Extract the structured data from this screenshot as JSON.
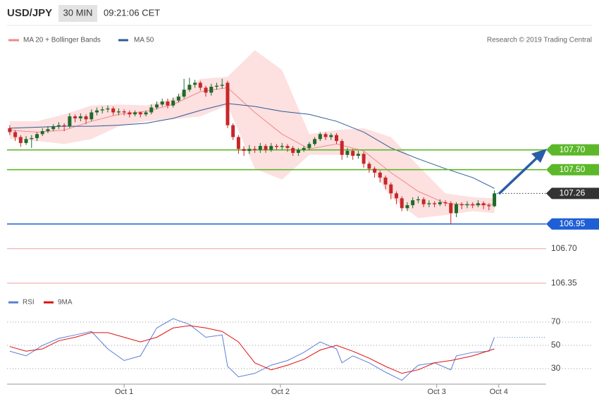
{
  "header": {
    "symbol": "USD/JPY",
    "interval": "30 MIN",
    "time": "09:21:06 CET"
  },
  "credit": "Research © 2019 Trading Central",
  "chart_data": [
    {
      "type": "candlestick",
      "up_color": "#1e6b2a",
      "down_color": "#c62828",
      "xlim": [
        -0.5,
        98.5
      ],
      "ylim": [
        106.22,
        108.79
      ],
      "open": [
        107.92,
        107.88,
        107.83,
        107.77,
        107.81,
        107.82,
        107.86,
        107.89,
        107.91,
        107.94,
        107.95,
        107.94,
        108.04,
        108.02,
        108.04,
        108.01,
        108.08,
        108.1,
        108.11,
        108.12,
        108.08,
        108.09,
        108.08,
        108.06,
        108.08,
        108.06,
        108.08,
        108.13,
        108.16,
        108.19,
        108.15,
        108.2,
        108.24,
        108.31,
        108.36,
        108.38,
        108.33,
        108.28,
        108.34,
        108.35,
        108.38,
        107.95,
        107.83,
        107.71,
        107.69,
        107.71,
        107.7,
        107.74,
        107.7,
        107.74,
        107.73,
        107.74,
        107.72,
        107.67,
        107.7,
        107.72,
        107.76,
        107.81,
        107.86,
        107.83,
        107.85,
        107.79,
        107.65,
        107.69,
        107.64,
        107.66,
        107.56,
        107.51,
        107.47,
        107.42,
        107.35,
        107.26,
        107.21,
        107.11,
        107.14,
        107.19,
        107.2,
        107.15,
        107.16,
        107.15,
        107.17,
        107.16,
        107.06,
        107.15,
        107.14,
        107.15,
        107.14,
        107.16,
        107.14,
        107.13
      ],
      "high": [
        107.95,
        107.9,
        107.85,
        107.84,
        107.85,
        107.88,
        107.92,
        107.94,
        107.96,
        107.98,
        107.97,
        108.07,
        108.06,
        108.07,
        108.06,
        108.11,
        108.13,
        108.14,
        108.15,
        108.14,
        108.12,
        108.11,
        108.1,
        108.1,
        108.09,
        108.1,
        108.16,
        108.19,
        108.22,
        108.22,
        108.23,
        108.27,
        108.42,
        108.43,
        108.41,
        108.4,
        108.35,
        108.37,
        108.38,
        108.42,
        108.4,
        107.97,
        107.85,
        107.74,
        107.75,
        107.74,
        107.77,
        107.76,
        107.77,
        107.76,
        107.77,
        107.76,
        107.74,
        107.72,
        107.74,
        107.78,
        107.83,
        107.88,
        107.88,
        107.87,
        107.87,
        107.81,
        107.72,
        107.71,
        107.69,
        107.68,
        107.58,
        107.53,
        107.49,
        107.44,
        107.37,
        107.28,
        107.23,
        107.17,
        107.22,
        107.23,
        107.22,
        107.19,
        107.18,
        107.2,
        107.19,
        107.18,
        107.17,
        107.17,
        107.18,
        107.17,
        107.19,
        107.18,
        107.16,
        107.29
      ],
      "low": [
        107.85,
        107.79,
        107.73,
        107.75,
        107.72,
        107.79,
        107.84,
        107.87,
        107.89,
        107.91,
        107.89,
        107.92,
        107.98,
        107.99,
        107.96,
        107.99,
        108.05,
        108.07,
        108.08,
        108.05,
        108.05,
        108.05,
        108.03,
        108.04,
        108.03,
        108.04,
        108.06,
        108.11,
        108.14,
        108.12,
        108.13,
        108.18,
        108.22,
        108.29,
        108.33,
        108.3,
        108.24,
        108.25,
        108.31,
        108.32,
        107.92,
        107.8,
        107.66,
        107.64,
        107.66,
        107.67,
        107.67,
        107.67,
        107.68,
        107.7,
        107.7,
        107.68,
        107.64,
        107.64,
        107.68,
        107.7,
        107.74,
        107.79,
        107.8,
        107.8,
        107.76,
        107.6,
        107.62,
        107.6,
        107.61,
        107.52,
        107.47,
        107.42,
        107.37,
        107.3,
        107.2,
        107.15,
        107.08,
        107.08,
        107.11,
        107.16,
        107.12,
        107.12,
        107.12,
        107.13,
        107.13,
        106.95,
        107.02,
        107.1,
        107.11,
        107.11,
        107.12,
        107.1,
        107.09,
        107.12
      ],
      "close": [
        107.88,
        107.83,
        107.77,
        107.81,
        107.82,
        107.86,
        107.89,
        107.91,
        107.94,
        107.95,
        107.94,
        108.04,
        108.02,
        108.04,
        108.01,
        108.08,
        108.1,
        108.11,
        108.12,
        108.08,
        108.09,
        108.08,
        108.06,
        108.08,
        108.06,
        108.08,
        108.13,
        108.16,
        108.19,
        108.15,
        108.2,
        108.24,
        108.31,
        108.36,
        108.38,
        108.33,
        108.28,
        108.34,
        108.35,
        108.36,
        107.95,
        107.83,
        107.71,
        107.69,
        107.71,
        107.7,
        107.74,
        107.7,
        107.74,
        107.73,
        107.74,
        107.72,
        107.67,
        107.7,
        107.72,
        107.76,
        107.81,
        107.86,
        107.83,
        107.85,
        107.79,
        107.65,
        107.69,
        107.64,
        107.66,
        107.56,
        107.51,
        107.47,
        107.42,
        107.35,
        107.26,
        107.21,
        107.11,
        107.14,
        107.19,
        107.2,
        107.15,
        107.16,
        107.15,
        107.17,
        107.16,
        107.06,
        107.15,
        107.14,
        107.15,
        107.14,
        107.16,
        107.14,
        107.13,
        107.26
      ],
      "bands": {
        "name": "MA 20 + Bollinger Bands",
        "color": "#f08a8a",
        "fill": "#fde0e0",
        "x": [
          0,
          5,
          10,
          15,
          20,
          25,
          30,
          35,
          40,
          45,
          50,
          55,
          60,
          65,
          70,
          75,
          80,
          85,
          89
        ],
        "mid": [
          107.9,
          107.88,
          107.9,
          107.99,
          108.06,
          108.09,
          108.16,
          108.29,
          108.33,
          108.08,
          107.86,
          107.71,
          107.76,
          107.69,
          107.47,
          107.28,
          107.16,
          107.14,
          107.15
        ],
        "upper": [
          107.99,
          107.99,
          108.06,
          108.15,
          108.16,
          108.15,
          108.22,
          108.42,
          108.44,
          108.71,
          108.51,
          107.86,
          107.9,
          107.92,
          107.83,
          107.54,
          107.26,
          107.22,
          107.21
        ],
        "lower": [
          107.81,
          107.79,
          107.76,
          107.81,
          107.94,
          107.99,
          108.01,
          108.04,
          108.15,
          107.51,
          107.4,
          107.65,
          107.65,
          107.64,
          107.22,
          107.01,
          107.04,
          107.08,
          107.06
        ]
      },
      "ma": {
        "name": "MA 50",
        "color": "#2e5c9a",
        "x": [
          0,
          5,
          10,
          15,
          20,
          25,
          30,
          35,
          40,
          45,
          50,
          55,
          60,
          65,
          70,
          75,
          80,
          85,
          89
        ],
        "values": [
          107.92,
          107.93,
          107.94,
          107.94,
          107.95,
          107.97,
          108.02,
          108.1,
          108.17,
          108.14,
          108.09,
          108.06,
          107.99,
          107.88,
          107.72,
          107.61,
          107.51,
          107.42,
          107.31
        ]
      },
      "levels": [
        {
          "value": 107.7,
          "label": "107.70",
          "color": "#5cb82a",
          "style": "solid",
          "box": true
        },
        {
          "value": 107.5,
          "label": "107.50",
          "color": "#5cb82a",
          "style": "solid",
          "box": true
        },
        {
          "value": 107.26,
          "label": "107.26",
          "color": "#333333",
          "style": "dotted",
          "box": true
        },
        {
          "value": 106.95,
          "label": "106.95",
          "color": "#1f5fd6",
          "style": "solid",
          "box": true
        },
        {
          "value": 106.7,
          "label": "106.70",
          "color": "#f0a0a0",
          "style": "solid",
          "box": false
        },
        {
          "value": 106.35,
          "label": "106.35",
          "color": "#f0a0a0",
          "style": "solid",
          "box": false
        }
      ]
    },
    {
      "type": "line",
      "xlim": [
        -0.5,
        98.5
      ],
      "ylim": [
        16.7,
        89.4
      ],
      "yticks": [
        30,
        50,
        70
      ],
      "xticks": [
        {
          "value": 21,
          "label": "Oct 1"
        },
        {
          "value": 49.7,
          "label": "Oct 2"
        },
        {
          "value": 78.4,
          "label": "Oct 3"
        },
        {
          "value": 89.8,
          "label": "Oct 4"
        }
      ],
      "series": [
        {
          "name": "RSI",
          "color": "#5b7fd6",
          "x": [
            0,
            3,
            6,
            9,
            12,
            15,
            18,
            21,
            24,
            27,
            30,
            33,
            36,
            39,
            40,
            42,
            45,
            48,
            51,
            54,
            57,
            60,
            61,
            63,
            66,
            69,
            72,
            75,
            78,
            81,
            82,
            85,
            88,
            89
          ],
          "values": [
            45,
            41,
            50,
            56,
            59,
            62,
            47,
            37,
            41,
            65,
            73,
            68,
            57,
            59,
            32,
            23,
            26,
            33,
            37,
            44,
            53,
            47,
            35,
            41,
            35,
            27,
            20,
            33,
            35,
            29,
            41,
            44,
            45,
            57
          ]
        },
        {
          "name": "9MA",
          "color": "#e01010",
          "x": [
            0,
            3,
            6,
            9,
            12,
            15,
            18,
            21,
            24,
            27,
            30,
            33,
            36,
            39,
            42,
            45,
            48,
            51,
            54,
            57,
            60,
            63,
            66,
            69,
            72,
            75,
            78,
            81,
            85,
            89
          ],
          "values": [
            49,
            45,
            47,
            54,
            57,
            61,
            61,
            57,
            53,
            57,
            65,
            67,
            65,
            62,
            53,
            35,
            29,
            33,
            38,
            46,
            50,
            45,
            39,
            32,
            26,
            29,
            35,
            37,
            41,
            47
          ]
        }
      ]
    }
  ]
}
